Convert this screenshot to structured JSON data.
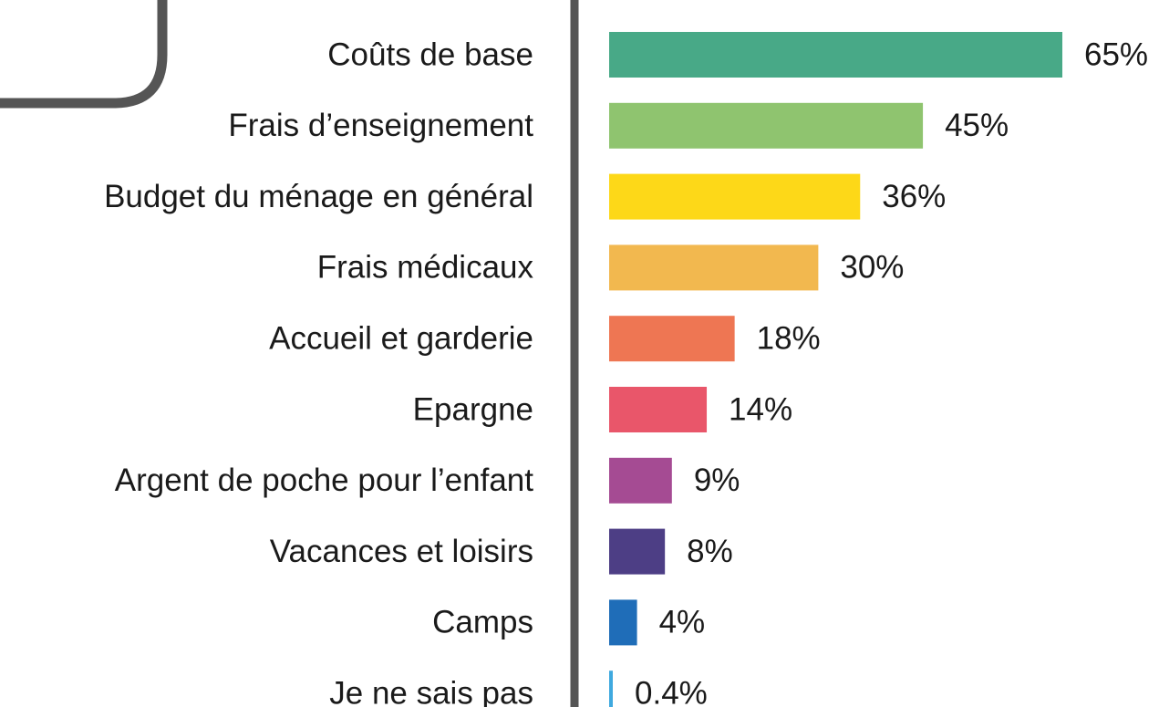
{
  "chart_data": {
    "type": "bar",
    "orientation": "horizontal",
    "categories": [
      "Coûts de base",
      "Frais d’enseignement",
      "Budget du ménage en général",
      "Frais médicaux",
      "Accueil et garderie",
      "Epargne",
      "Argent de poche pour l’enfant",
      "Vacances et loisirs",
      "Camps",
      "Je ne sais pas"
    ],
    "values": [
      65,
      45,
      36,
      30,
      18,
      14,
      9,
      8,
      4,
      0.4
    ],
    "value_labels": [
      "65%",
      "45%",
      "36%",
      "30%",
      "18%",
      "14%",
      "9%",
      "8%",
      "4%",
      "0.4%"
    ],
    "colors": [
      "#48a987",
      "#8fc46f",
      "#fdd818",
      "#f2b84f",
      "#ee7653",
      "#e9566a",
      "#a54b93",
      "#4d3e85",
      "#1f6db8",
      "#3fa9df"
    ]
  }
}
